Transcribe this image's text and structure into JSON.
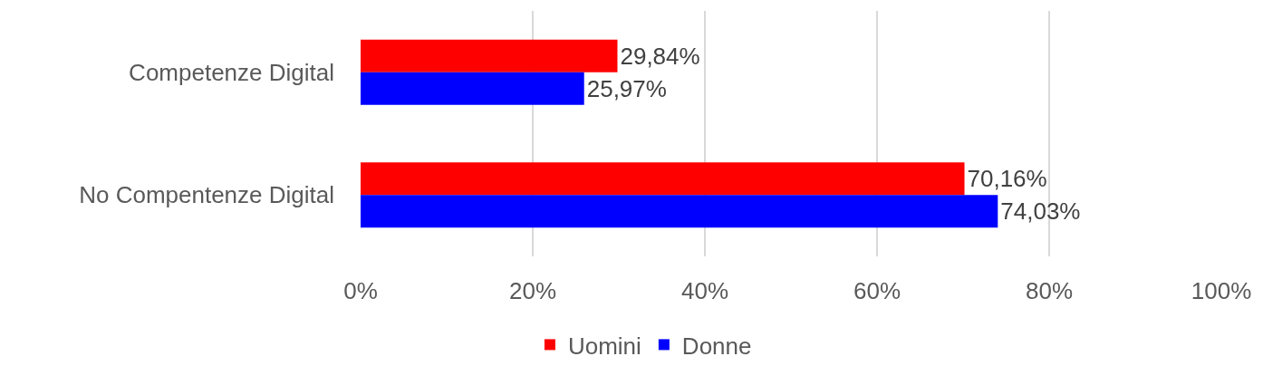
{
  "chart_data": {
    "type": "bar",
    "orientation": "horizontal",
    "categories": [
      "Competenze Digital",
      "No Compentenze Digital"
    ],
    "series": [
      {
        "name": "Uomini",
        "color": "#ff0000",
        "values": [
          29.84,
          70.16
        ],
        "value_labels": [
          "29,84%",
          "70,16%"
        ]
      },
      {
        "name": "Donne",
        "color": "#0000ff",
        "values": [
          25.97,
          74.03
        ],
        "value_labels": [
          "25,97%",
          "74,03%"
        ]
      }
    ],
    "xlim": [
      0,
      100
    ],
    "xticks": [
      {
        "value": 0,
        "label": "0%"
      },
      {
        "value": 20,
        "label": "20%"
      },
      {
        "value": 40,
        "label": "40%"
      },
      {
        "value": 60,
        "label": "60%"
      },
      {
        "value": 80,
        "label": "80%"
      },
      {
        "value": 100,
        "label": "100%"
      }
    ],
    "grid": "x",
    "legend": "bottom"
  }
}
